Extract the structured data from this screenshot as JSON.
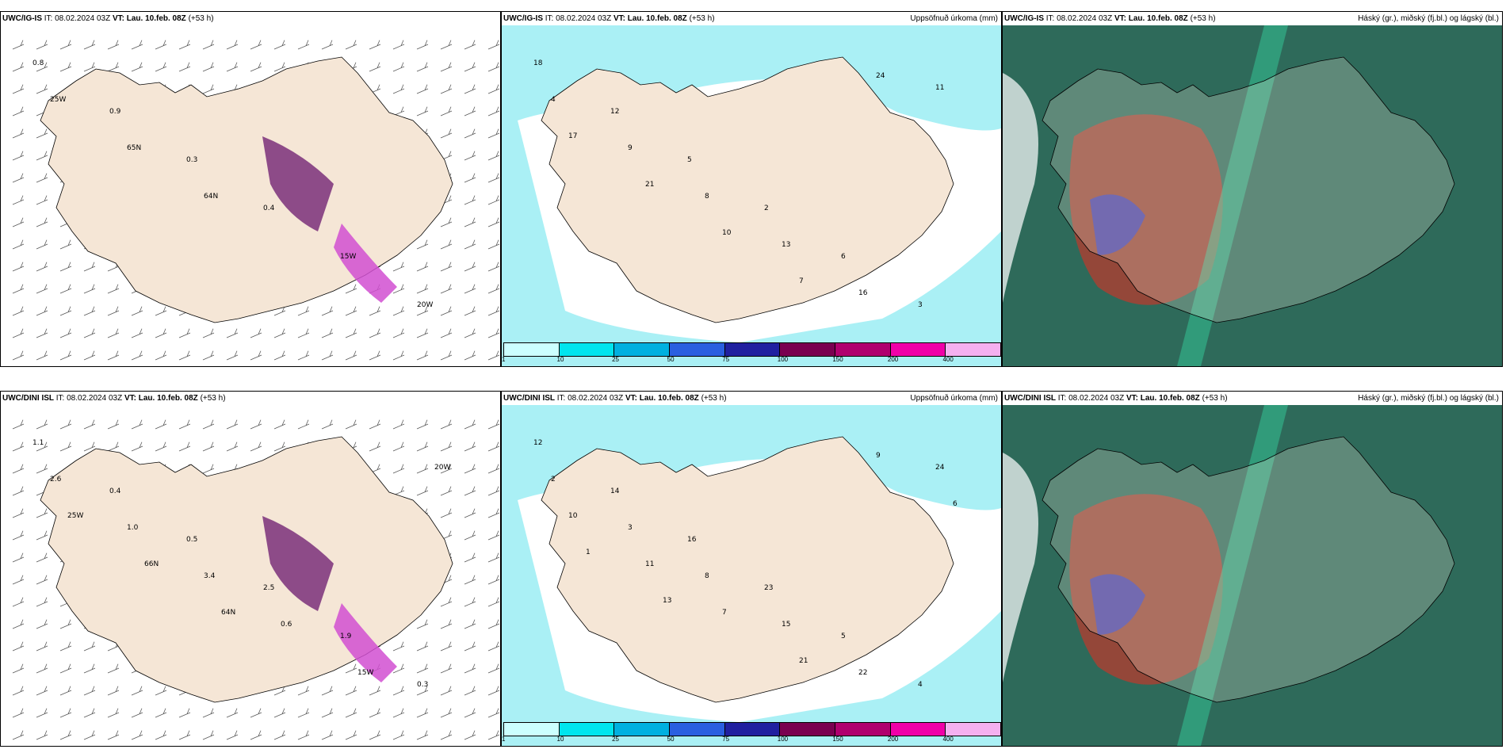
{
  "panels": [
    {
      "id": "p1",
      "model": "UWC/IG-IS",
      "it_label": "IT:",
      "it": "08.02.2024 03Z",
      "vt_label": "VT:",
      "vt": "Lau. 10.feb. 08Z",
      "lead": "(+53 h)",
      "right": "",
      "kind": "wind",
      "labels": [
        "0.8",
        "0.9",
        "0.3",
        "0.4",
        "15W",
        "20W",
        "25W",
        "65N",
        "64N"
      ]
    },
    {
      "id": "p2",
      "model": "UWC/IG-IS",
      "it_label": "IT:",
      "it": "08.02.2024 03Z",
      "vt_label": "VT:",
      "vt": "Lau. 10.feb. 08Z",
      "lead": "(+53 h)",
      "right": "Uppsöfnuð úrkoma (mm)",
      "kind": "precip",
      "labels": [
        "18",
        "12",
        "5",
        "2",
        "6",
        "3",
        "4",
        "9",
        "8",
        "13",
        "16",
        "11",
        "17",
        "21",
        "10",
        "7",
        "24"
      ]
    },
    {
      "id": "p3",
      "model": "UWC/IG-IS",
      "it_label": "IT:",
      "it": "08.02.2024 03Z",
      "vt_label": "VT:",
      "vt": "Lau. 10.feb. 08Z",
      "lead": "(+53 h)",
      "right": "Háský (gr.), miðský (fj.bl.) og lágský (bl.)",
      "kind": "cloud"
    },
    {
      "id": "p4",
      "model": "UWC/DINI ISL",
      "it_label": "IT:",
      "it": "08.02.2024 03Z",
      "vt_label": "VT:",
      "vt": "Lau. 10.feb. 08Z",
      "lead": "(+53 h)",
      "right": "",
      "kind": "wind",
      "labels": [
        "1.1",
        "0.4",
        "0.5",
        "2.5",
        "1.9",
        "0.3",
        "2.6",
        "1.0",
        "3.4",
        "0.6",
        "15W",
        "20W",
        "25W",
        "66N",
        "64N"
      ]
    },
    {
      "id": "p5",
      "model": "UWC/DINI ISL",
      "it_label": "IT:",
      "it": "08.02.2024 03Z",
      "vt_label": "VT:",
      "vt": "Lau. 10.feb. 08Z",
      "lead": "(+53 h)",
      "right": "Uppsöfnuð úrkoma (mm)",
      "kind": "precip",
      "labels": [
        "12",
        "14",
        "16",
        "23",
        "5",
        "4",
        "2",
        "3",
        "8",
        "15",
        "22",
        "24",
        "10",
        "11",
        "7",
        "21",
        "9",
        "6",
        "1",
        "13"
      ]
    },
    {
      "id": "p6",
      "model": "UWC/DINI ISL",
      "it_label": "IT:",
      "it": "08.02.2024 03Z",
      "vt_label": "VT:",
      "vt": "Lau. 10.feb. 08Z",
      "lead": "(+53 h)",
      "right": "Háský (gr.), miðský (fj.bl.) og lágský (bl.)",
      "kind": "cloud"
    }
  ],
  "legend": {
    "colors": [
      "#ccffff",
      "#00e5ee",
      "#00b0e0",
      "#2a5fe0",
      "#2020a0",
      "#7a0050",
      "#b0006e",
      "#f000a8",
      "#f5b0f0"
    ],
    "ticks": [
      "1",
      "10",
      "25",
      "50",
      "75",
      "100",
      "150",
      "200",
      "400"
    ]
  },
  "colors": {
    "land": "#f5e6d6",
    "precip": "#aaf0f5",
    "cloud_bg": "#2e6a5a",
    "wind_barb": "#555555"
  }
}
